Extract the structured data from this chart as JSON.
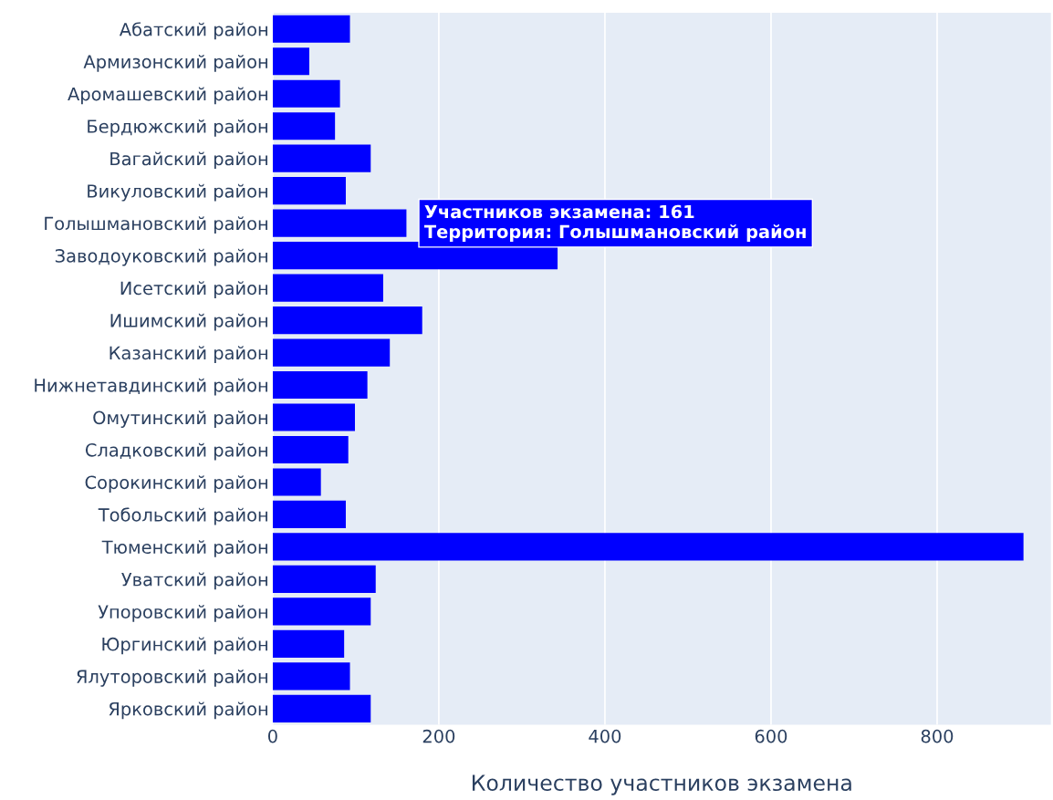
{
  "chart_data": {
    "type": "bar",
    "orientation": "horizontal",
    "xlabel": "Количество участников экзамена",
    "categories": [
      "Абатский район",
      "Армизонский район",
      "Аромашевский район",
      "Бердюжский район",
      "Вагайский район",
      "Викуловский район",
      "Голышмановский район",
      "Заводоуковский район",
      "Исетский район",
      "Ишимский район",
      "Казанский район",
      "Нижнетавдинский район",
      "Омутинский район",
      "Сладковский район",
      "Сорокинский район",
      "Тобольский район",
      "Тюменский район",
      "Уватский район",
      "Упоровский район",
      "Юргинский район",
      "Ялуторовский район",
      "Ярковский район"
    ],
    "values": [
      93,
      44,
      81,
      75,
      118,
      88,
      161,
      343,
      133,
      180,
      141,
      114,
      99,
      91,
      58,
      88,
      904,
      124,
      118,
      86,
      93,
      118
    ],
    "color": "#0000ff",
    "xlim": [
      0,
      937
    ],
    "xticks": [
      0,
      200,
      400,
      600,
      800
    ],
    "grid": "x",
    "annotations": [
      {
        "text": "Участников экзамена: 161\nТерритория: Голышмановский район",
        "x": 161,
        "y": "Голышмановский район"
      }
    ]
  }
}
